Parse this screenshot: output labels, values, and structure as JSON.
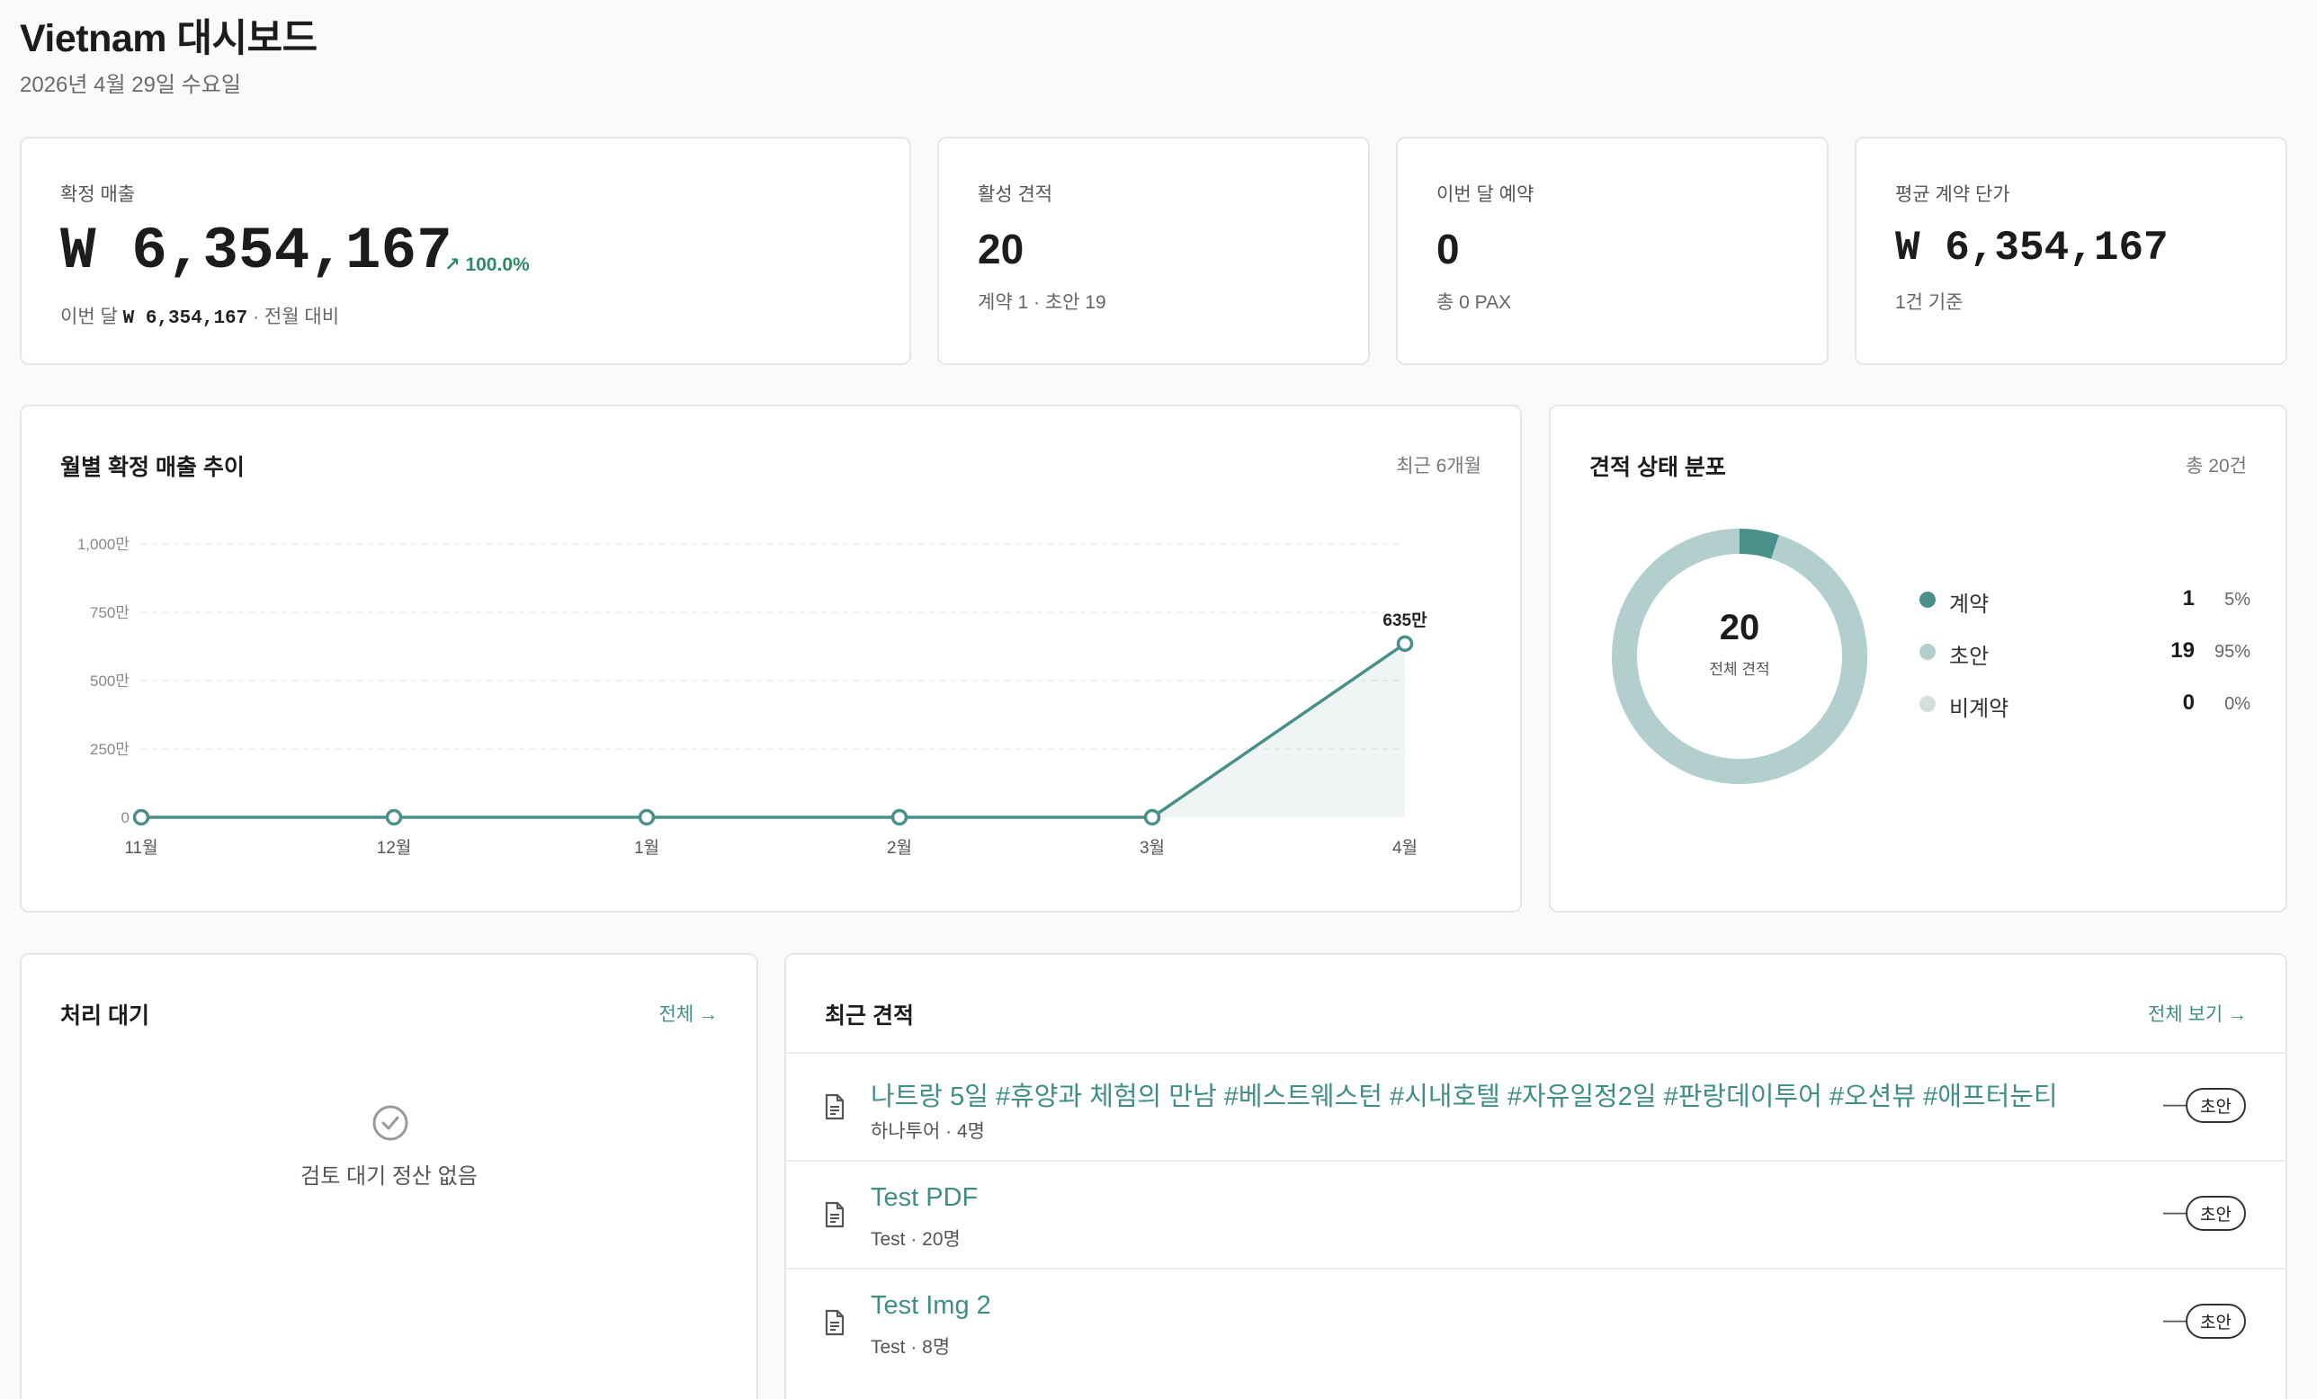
{
  "header": {
    "title": "Vietnam 대시보드",
    "date": "2026년 4월 29일 수요일"
  },
  "kpis": {
    "revenue": {
      "label": "확정 매출",
      "value": "W 6,354,167",
      "delta": "100.0%",
      "sub_prefix": "이번 달",
      "sub_value": "W 6,354,167",
      "sub_suffix": "· 전월 대비"
    },
    "active_quotes": {
      "label": "활성 견적",
      "value": "20",
      "sub": "계약 1 · 초안 19"
    },
    "bookings": {
      "label": "이번 달 예약",
      "value": "0",
      "sub": "총 0 PAX"
    },
    "avg_price": {
      "label": "평균 계약 단가",
      "value": "W 6,354,167",
      "sub": "1건 기준"
    }
  },
  "revenue_chart": {
    "title": "월별 확정 매출 추이",
    "meta": "최근 6개월",
    "chart_data": {
      "type": "area",
      "categories": [
        "11월",
        "12월",
        "1월",
        "2월",
        "3월",
        "4월"
      ],
      "values": [
        0,
        0,
        0,
        0,
        0,
        6354167
      ],
      "y_ticks": [
        "0",
        "250만",
        "500만",
        "750만",
        "1,000만"
      ],
      "ylim": [
        0,
        10000000
      ],
      "data_labels": [
        {
          "index": 5,
          "text": "635만"
        }
      ],
      "grid": true,
      "color": "#4a908a"
    }
  },
  "status_chart": {
    "title": "견적 상태 분포",
    "meta": "총 20건",
    "center_value": "20",
    "center_label": "전체 견적",
    "chart_data": {
      "type": "pie",
      "labels": [
        "계약",
        "초안",
        "비계약"
      ],
      "values": [
        1,
        19,
        0
      ],
      "percents": [
        "5%",
        "95%",
        "0%"
      ],
      "colors": [
        "#4a908a",
        "#b2cfcd",
        "#d3dedd"
      ]
    }
  },
  "pending": {
    "title": "처리 대기",
    "link": "전체 →",
    "empty_text": "검토 대기 정산 없음"
  },
  "recent": {
    "title": "최근 견적",
    "link": "전체 보기 →",
    "items": [
      {
        "title": "나트랑 5일 #휴양과 체험의 만남 #베스트웨스턴 #시내호텔 #자유일정2일 #판랑데이투어 #오션뷰 #애프터눈티",
        "sub": "하나투어 · 4명",
        "amount": "—",
        "status": "초안"
      },
      {
        "title": "Test PDF",
        "sub": "Test · 20명",
        "amount": "—",
        "status": "초안"
      },
      {
        "title": "Test Img 2",
        "sub": "Test · 8명",
        "amount": "—",
        "status": "초안"
      }
    ]
  }
}
